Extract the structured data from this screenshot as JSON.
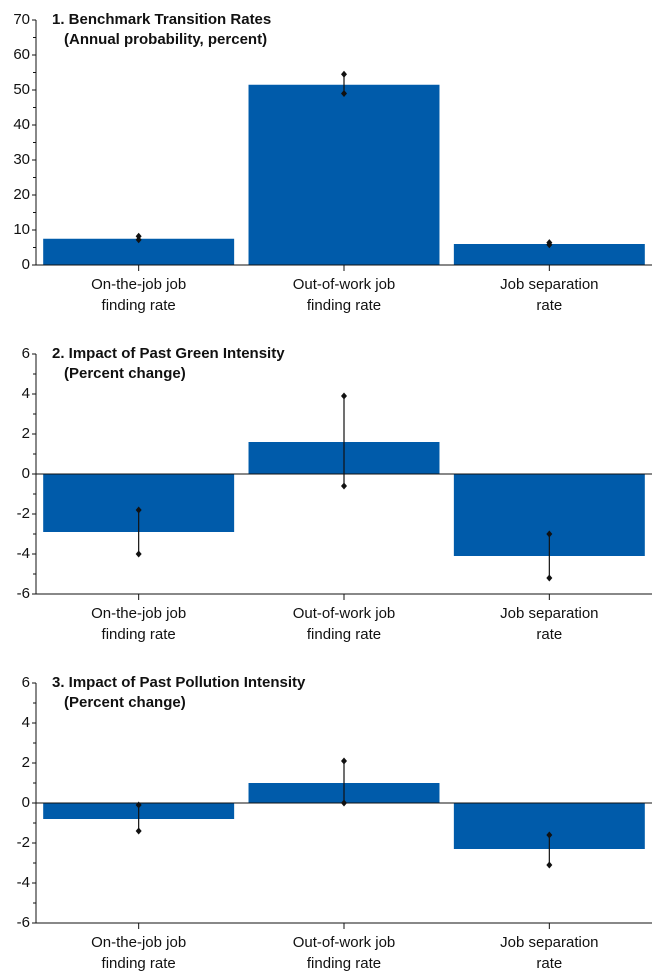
{
  "chart_data": [
    {
      "type": "bar",
      "title": "1. Benchmark Transition Rates",
      "subtitle": "(Annual probability, percent)",
      "categories": [
        "On-the-job job finding rate",
        "Out-of-work job finding rate",
        "Job separation rate"
      ],
      "values": [
        7.5,
        51.5,
        6
      ],
      "ci": [
        [
          7.2,
          8.2
        ],
        [
          49,
          54.5
        ],
        [
          5.8,
          6.4
        ]
      ],
      "color": "#005baa",
      "ylim": [
        0,
        70
      ],
      "yticks": [
        0,
        10,
        20,
        30,
        40,
        50,
        60,
        70
      ]
    },
    {
      "type": "bar",
      "title": "2. Impact of Past Green Intensity",
      "subtitle": "(Percent change)",
      "categories": [
        "On-the-job job finding rate",
        "Out-of-work job finding rate",
        "Job separation rate"
      ],
      "values": [
        -2.9,
        1.6,
        -4.1
      ],
      "ci": [
        [
          -4,
          -1.8
        ],
        [
          -0.6,
          3.9
        ],
        [
          -5.2,
          -3
        ]
      ],
      "color": "#005baa",
      "ylim": [
        -6,
        6
      ],
      "yticks": [
        -6,
        -4,
        -2,
        0,
        2,
        4,
        6
      ]
    },
    {
      "type": "bar",
      "title": "3. Impact of Past Pollution Intensity",
      "subtitle": "(Percent change)",
      "categories": [
        "On-the-job job finding rate",
        "Out-of-work job finding rate",
        "Job separation rate"
      ],
      "values": [
        -0.8,
        1.0,
        -2.3
      ],
      "ci": [
        [
          -1.4,
          -0.1
        ],
        [
          0,
          2.1
        ],
        [
          -3.1,
          -1.6
        ]
      ],
      "color": "#005baa",
      "ylim": [
        -6,
        6
      ],
      "yticks": [
        -6,
        -4,
        -2,
        0,
        2,
        4,
        6
      ]
    }
  ]
}
